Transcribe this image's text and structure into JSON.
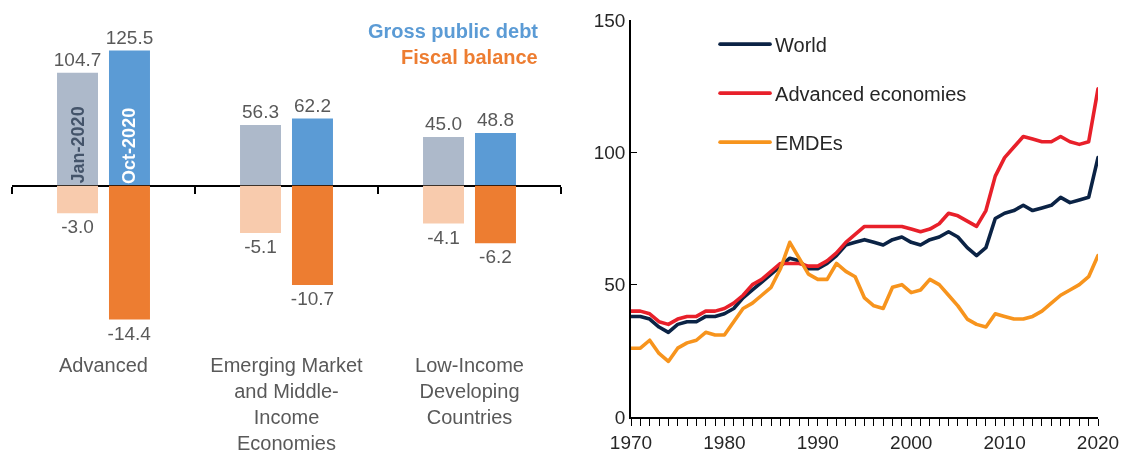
{
  "chart_data": [
    {
      "type": "bar",
      "categories": [
        null,
        null,
        null
      ],
      "series": [
        {
          "name": "Jan-2020",
          "color": "#adb9ca",
          "values": [
            104.7,
            56.3,
            45.0
          ],
          "value_labels": [
            "104.7",
            "56.3",
            "45.0"
          ]
        },
        {
          "name": "Oct-2020",
          "color": "#5b9bd5",
          "values": [
            125.5,
            62.2,
            48.8
          ],
          "value_labels": [
            "125.5",
            "62.2",
            "48.8"
          ]
        }
      ],
      "annotations": [
        "Gross public debt"
      ],
      "tick_labels": false
    },
    {
      "type": "bar",
      "categories": [
        "Advanced",
        "Emerging Market and Middle-Income Economies",
        "Low-Income Developing Countries"
      ],
      "series": [
        {
          "color": "#f8cbad",
          "values": [
            -3.0,
            -5.1,
            -4.1
          ],
          "value_labels": [
            "-3.0",
            "-5.1",
            "-4.1"
          ]
        },
        {
          "color": "#ed7d31",
          "values": [
            -14.4,
            -10.7,
            -6.2
          ],
          "value_labels": [
            "-14.4",
            "-10.7",
            "-6.2"
          ]
        }
      ],
      "annotations": [
        "Fiscal balance"
      ],
      "tick_labels": "x"
    },
    {
      "type": "line",
      "x": [
        1970,
        1971,
        1972,
        1973,
        1974,
        1975,
        1976,
        1977,
        1978,
        1979,
        1980,
        1981,
        1982,
        1983,
        1984,
        1985,
        1986,
        1987,
        1988,
        1989,
        1990,
        1991,
        1992,
        1993,
        1994,
        1995,
        1996,
        1997,
        1998,
        1999,
        2000,
        2001,
        2002,
        2003,
        2004,
        2005,
        2006,
        2007,
        2008,
        2009,
        2010,
        2011,
        2012,
        2013,
        2014,
        2015,
        2016,
        2017,
        2018,
        2019,
        2020
      ],
      "series": [
        {
          "name": "World",
          "color": "#0b2345",
          "values": [
            38,
            38,
            37,
            34,
            32,
            35,
            36,
            36,
            38,
            38,
            39,
            41,
            45,
            48,
            51,
            54,
            57,
            60,
            59,
            56,
            56,
            58,
            61,
            65,
            66,
            67,
            66,
            65,
            67,
            68,
            66,
            65,
            67,
            68,
            70,
            68,
            64,
            61,
            64,
            75,
            77,
            78,
            80,
            78,
            79,
            80,
            83,
            81,
            82,
            83,
            98
          ]
        },
        {
          "name": "Advanced economies",
          "color": "#e8202a",
          "values": [
            40,
            40,
            39,
            36,
            35,
            37,
            38,
            38,
            40,
            40,
            41,
            43,
            46,
            50,
            52,
            55,
            58,
            58,
            58,
            57,
            57,
            59,
            62,
            66,
            69,
            72,
            72,
            72,
            72,
            72,
            71,
            70,
            71,
            73,
            77,
            76,
            74,
            72,
            78,
            91,
            98,
            102,
            106,
            105,
            104,
            104,
            106,
            104,
            103,
            104,
            124
          ]
        },
        {
          "name": "EMDEs",
          "color": "#f7941d",
          "values": [
            26,
            26,
            29,
            24,
            21,
            26,
            28,
            29,
            32,
            31,
            31,
            36,
            41,
            43,
            46,
            49,
            56,
            66,
            60,
            54,
            52,
            52,
            58,
            55,
            53,
            45,
            42,
            41,
            49,
            50,
            47,
            48,
            52,
            50,
            46,
            42,
            37,
            35,
            34,
            39,
            38,
            37,
            37,
            38,
            40,
            43,
            46,
            48,
            50,
            53,
            61
          ]
        }
      ],
      "xlim": [
        1970,
        2020
      ],
      "xticks": [
        1970,
        {
          "value": 1971,
          "label": null
        },
        {
          "value": 1972,
          "label": null
        },
        {
          "value": 1973,
          "label": null
        },
        {
          "value": 1974,
          "label": null
        },
        {
          "value": 1975,
          "label": null
        },
        {
          "value": 1976,
          "label": null
        },
        {
          "value": 1977,
          "label": null
        },
        {
          "value": 1978,
          "label": null
        },
        {
          "value": 1979,
          "label": null
        },
        1980,
        {
          "value": 1981,
          "label": null
        },
        {
          "value": 1982,
          "label": null
        },
        {
          "value": 1983,
          "label": null
        },
        {
          "value": 1984,
          "label": null
        },
        {
          "value": 1985,
          "label": null
        },
        {
          "value": 1986,
          "label": null
        },
        {
          "value": 1987,
          "label": null
        },
        {
          "value": 1988,
          "label": null
        },
        {
          "value": 1989,
          "label": null
        },
        1990,
        {
          "value": 1991,
          "label": null
        },
        {
          "value": 1992,
          "label": null
        },
        {
          "value": 1993,
          "label": null
        },
        {
          "value": 1994,
          "label": null
        },
        {
          "value": 1995,
          "label": null
        },
        {
          "value": 1996,
          "label": null
        },
        {
          "value": 1997,
          "label": null
        },
        {
          "value": 1998,
          "label": null
        },
        {
          "value": 1999,
          "label": null
        },
        2000,
        {
          "value": 2001,
          "label": null
        },
        {
          "value": 2002,
          "label": null
        },
        {
          "value": 2003,
          "label": null
        },
        {
          "value": 2004,
          "label": null
        },
        {
          "value": 2005,
          "label": null
        },
        {
          "value": 2006,
          "label": null
        },
        {
          "value": 2007,
          "label": null
        },
        {
          "value": 2008,
          "label": null
        },
        {
          "value": 2009,
          "label": null
        },
        2010,
        {
          "value": 2011,
          "label": null
        },
        {
          "value": 2012,
          "label": null
        },
        {
          "value": 2013,
          "label": null
        },
        {
          "value": 2014,
          "label": null
        },
        {
          "value": 2015,
          "label": null
        },
        {
          "value": 2016,
          "label": null
        },
        {
          "value": 2017,
          "label": null
        },
        {
          "value": 2018,
          "label": null
        },
        {
          "value": 2019,
          "label": null
        },
        2020
      ],
      "ylim": [
        0,
        150
      ],
      "yticks": [
        0,
        50,
        100,
        150
      ],
      "legend": "top left"
    }
  ]
}
